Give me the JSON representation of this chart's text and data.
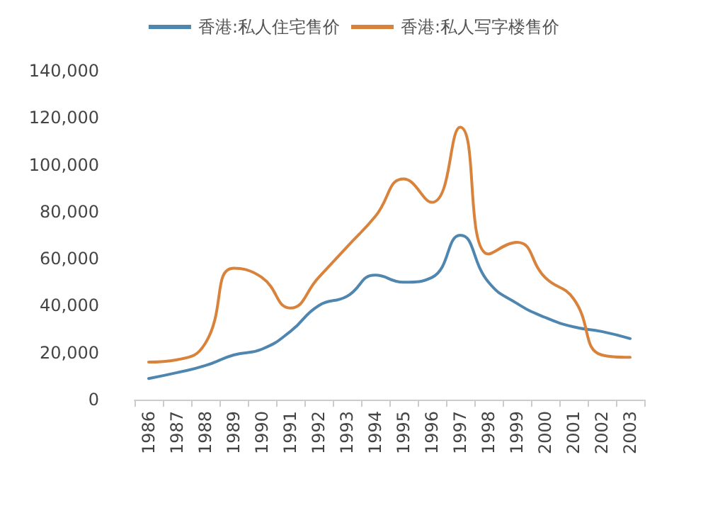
{
  "chart_data": {
    "type": "line",
    "categories": [
      "1986",
      "1987",
      "1988",
      "1989",
      "1990",
      "1991",
      "1992",
      "1993",
      "1994",
      "1995",
      "1996",
      "1997",
      "1998",
      "1999",
      "2000",
      "2001",
      "2002",
      "2003"
    ],
    "series": [
      {
        "name": "香港:私人住宅售价",
        "color": "#4f86b0",
        "values": [
          9000,
          11500,
          14500,
          19000,
          21500,
          29000,
          40000,
          44000,
          53000,
          50000,
          52000,
          70000,
          50000,
          41000,
          35000,
          31000,
          29000,
          26000
        ]
      },
      {
        "name": "香港:私人写字楼售价",
        "color": "#d9823b",
        "values": [
          16000,
          17000,
          24000,
          56000,
          52000,
          39000,
          52000,
          65000,
          78000,
          94000,
          84000,
          116000,
          62000,
          67000,
          52000,
          43000,
          19000,
          18000
        ]
      }
    ],
    "ylim": [
      0,
      140000
    ],
    "yticks": [
      0,
      {
        "value": 20000,
        "label": "20,000"
      },
      {
        "value": 40000,
        "label": "40,000"
      },
      {
        "value": 60000,
        "label": "60,000"
      },
      {
        "value": 80000,
        "label": "80,000"
      },
      {
        "value": 100000,
        "label": "100,000"
      },
      {
        "value": 120000,
        "label": "120,000"
      },
      {
        "value": 140000,
        "label": "140,000"
      }
    ],
    "grid": false,
    "legend": "top",
    "marker": "none",
    "line_style": "solid"
  }
}
